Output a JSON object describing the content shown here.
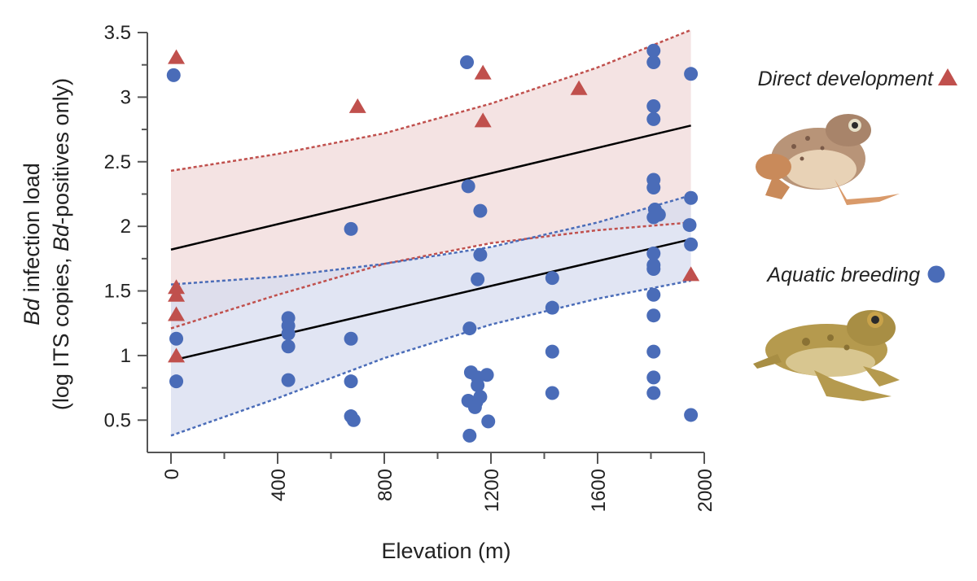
{
  "chart_data": {
    "type": "scatter",
    "xlabel": "Elevation (m)",
    "ylabel_parts": [
      {
        "text": "Bd",
        "italic": true
      },
      {
        "text": " infection load",
        "italic": false
      }
    ],
    "ylabel2_parts": [
      {
        "text": "(log ITS copies, ",
        "italic": false
      },
      {
        "text": "Bd",
        "italic": true
      },
      {
        "text": "-positives only)",
        "italic": false
      }
    ],
    "xlim": [
      -100,
      2000
    ],
    "ylim": [
      0.25,
      3.5
    ],
    "x_ticks": [
      0,
      400,
      800,
      1200,
      1600,
      2000
    ],
    "x_minor_ticks": [
      200,
      600,
      1000,
      1400,
      1800
    ],
    "y_ticks": [
      0.5,
      1,
      1.5,
      2,
      2.5,
      3,
      3.5
    ],
    "y_minor_ticks": [
      0.75,
      1.25,
      1.75,
      2.25,
      2.75,
      3.25
    ],
    "grid": false,
    "legend_position": "right",
    "colors": {
      "direct": "#c0504d",
      "direct_band": "#f0d9d9",
      "aquatic": "#4a6cb8",
      "aquatic_band": "#d7dcef",
      "fit": "#000000",
      "axis": "#555555"
    },
    "series": [
      {
        "name": "Direct development",
        "marker": "triangle",
        "color": "#c0504d",
        "points": [
          [
            20,
            3.3
          ],
          [
            20,
            1.52
          ],
          [
            20,
            1.46
          ],
          [
            20,
            1.31
          ],
          [
            20,
            0.99
          ],
          [
            700,
            2.92
          ],
          [
            1170,
            3.18
          ],
          [
            1170,
            2.81
          ],
          [
            1530,
            3.06
          ],
          [
            1950,
            1.62
          ]
        ],
        "fit": {
          "x": [
            0,
            1950
          ],
          "y": [
            1.82,
            2.78
          ]
        },
        "ci_upper": [
          [
            0,
            2.43
          ],
          [
            400,
            2.56
          ],
          [
            800,
            2.72
          ],
          [
            1200,
            2.95
          ],
          [
            1600,
            3.23
          ],
          [
            1950,
            3.52
          ]
        ],
        "ci_lower": [
          [
            0,
            1.21
          ],
          [
            400,
            1.47
          ],
          [
            800,
            1.71
          ],
          [
            1200,
            1.87
          ],
          [
            1600,
            1.97
          ],
          [
            1950,
            2.03
          ]
        ]
      },
      {
        "name": "Aquatic breeding",
        "marker": "circle",
        "color": "#4a6cb8",
        "points": [
          [
            10,
            3.17
          ],
          [
            20,
            1.13
          ],
          [
            20,
            0.8
          ],
          [
            440,
            1.29
          ],
          [
            440,
            1.23
          ],
          [
            440,
            1.17
          ],
          [
            440,
            1.07
          ],
          [
            440,
            0.81
          ],
          [
            675,
            1.98
          ],
          [
            675,
            1.13
          ],
          [
            675,
            0.8
          ],
          [
            675,
            0.53
          ],
          [
            685,
            0.5
          ],
          [
            1110,
            3.27
          ],
          [
            1115,
            2.31
          ],
          [
            1120,
            1.21
          ],
          [
            1125,
            0.87
          ],
          [
            1115,
            0.65
          ],
          [
            1120,
            0.38
          ],
          [
            1150,
            0.83
          ],
          [
            1150,
            0.77
          ],
          [
            1145,
            0.64
          ],
          [
            1140,
            0.6
          ],
          [
            1160,
            0.68
          ],
          [
            1160,
            2.12
          ],
          [
            1160,
            1.78
          ],
          [
            1150,
            1.59
          ],
          [
            1185,
            0.85
          ],
          [
            1190,
            0.49
          ],
          [
            1430,
            1.6
          ],
          [
            1430,
            1.37
          ],
          [
            1430,
            1.03
          ],
          [
            1430,
            0.71
          ],
          [
            1810,
            3.36
          ],
          [
            1810,
            3.27
          ],
          [
            1810,
            2.93
          ],
          [
            1810,
            2.83
          ],
          [
            1810,
            2.36
          ],
          [
            1810,
            2.3
          ],
          [
            1815,
            2.13
          ],
          [
            1810,
            2.07
          ],
          [
            1830,
            2.09
          ],
          [
            1810,
            1.79
          ],
          [
            1810,
            1.7
          ],
          [
            1810,
            1.67
          ],
          [
            1810,
            1.47
          ],
          [
            1810,
            1.31
          ],
          [
            1810,
            1.03
          ],
          [
            1810,
            0.83
          ],
          [
            1810,
            0.71
          ],
          [
            1950,
            3.18
          ],
          [
            1950,
            2.22
          ],
          [
            1945,
            2.01
          ],
          [
            1950,
            1.86
          ],
          [
            1950,
            0.54
          ]
        ],
        "fit": {
          "x": [
            0,
            1950
          ],
          "y": [
            0.96,
            1.9
          ]
        },
        "ci_upper": [
          [
            0,
            1.55
          ],
          [
            400,
            1.61
          ],
          [
            800,
            1.71
          ],
          [
            1200,
            1.84
          ],
          [
            1600,
            2.03
          ],
          [
            1950,
            2.24
          ]
        ],
        "ci_lower": [
          [
            0,
            0.38
          ],
          [
            400,
            0.67
          ],
          [
            800,
            0.98
          ],
          [
            1200,
            1.24
          ],
          [
            1600,
            1.44
          ],
          [
            1950,
            1.58
          ]
        ]
      }
    ]
  },
  "legend": {
    "direct_label": "Direct development",
    "direct_icon": "frog-direct-development-icon",
    "aquatic_label": "Aquatic breeding",
    "aquatic_icon": "frog-aquatic-breeding-icon"
  }
}
